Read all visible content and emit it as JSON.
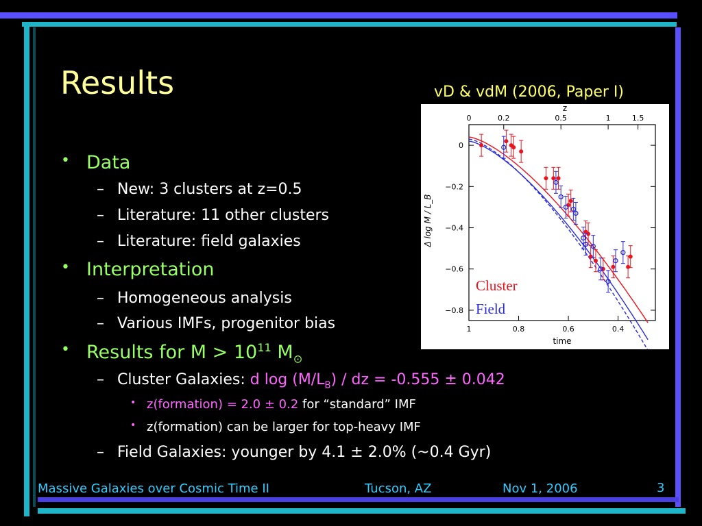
{
  "slide": {
    "title": "Results",
    "citation": "vD & vdM (2006, Paper I)",
    "page_number": "3"
  },
  "bullets": {
    "data": "Data",
    "data_items": [
      "New: 3 clusters at z=0.5",
      "Literature: 11 other clusters",
      "Literature: field galaxies"
    ],
    "interpretation": "Interpretation",
    "interp_items": [
      "Homogeneous analysis",
      "Various IMFs, progenitor bias"
    ],
    "results_prefix": "Results for M > 10",
    "results_exp": "11",
    "results_unit": " M",
    "results_sun": "⊙",
    "cluster_label": "Cluster Galaxies: ",
    "cluster_value_a": "d log (M/L",
    "cluster_value_sub": "B",
    "cluster_value_b": ") / dz = -0.555 ± 0.042",
    "zform_value": "z(formation) = 2.0 ± 0.2",
    "zform_rest": " for “standard” IMF",
    "zform_top": "z(formation) can be larger for top-heavy IMF",
    "field": "Field Galaxies: younger by 4.1 ± 2.0% (~0.4 Gyr)"
  },
  "footer": {
    "left": "Massive Galaxies over Cosmic Time II",
    "middle": "Tucson, AZ",
    "right": "Nov 1, 2006"
  },
  "figure": {
    "top_axis_label": "z",
    "top_ticks": [
      "0",
      "0.2",
      "0.5",
      "1",
      "1.5"
    ],
    "left_axis_label": "Δ log M / L_B",
    "y_ticks": [
      "0",
      "−0.2",
      "−0.4",
      "−0.6",
      "−0.8"
    ],
    "bottom_ticks": [
      "1",
      "0.8",
      "0.6",
      "0.4"
    ],
    "bottom_axis_label": "time",
    "legend_cluster": "Cluster",
    "legend_field": "Field",
    "colors": {
      "cluster": "#e8141e",
      "field": "#2a2ad8"
    }
  },
  "chart_data": {
    "type": "scatter",
    "title": "",
    "xlabel": "time",
    "ylabel": "Δ log M / L_B",
    "x_top_label": "z",
    "xlim": [
      1.0,
      0.25
    ],
    "ylim": [
      -0.85,
      0.1
    ],
    "series": [
      {
        "name": "Cluster",
        "points": [
          {
            "x": 0.95,
            "y": 0.0
          },
          {
            "x": 0.85,
            "y": 0.02
          },
          {
            "x": 0.83,
            "y": 0.0
          },
          {
            "x": 0.82,
            "y": -0.01
          },
          {
            "x": 0.79,
            "y": -0.03
          },
          {
            "x": 0.69,
            "y": -0.16
          },
          {
            "x": 0.66,
            "y": -0.16
          },
          {
            "x": 0.64,
            "y": -0.16
          },
          {
            "x": 0.6,
            "y": -0.29
          },
          {
            "x": 0.59,
            "y": -0.27
          },
          {
            "x": 0.53,
            "y": -0.42
          },
          {
            "x": 0.52,
            "y": -0.43
          },
          {
            "x": 0.51,
            "y": -0.54
          },
          {
            "x": 0.49,
            "y": -0.56
          },
          {
            "x": 0.46,
            "y": -0.6
          },
          {
            "x": 0.42,
            "y": -0.59
          },
          {
            "x": 0.36,
            "y": -0.59
          },
          {
            "x": 0.35,
            "y": -0.54
          }
        ]
      },
      {
        "name": "Field",
        "points": [
          {
            "x": 0.86,
            "y": -0.01
          },
          {
            "x": 0.65,
            "y": -0.18
          },
          {
            "x": 0.63,
            "y": -0.25
          },
          {
            "x": 0.61,
            "y": -0.3
          },
          {
            "x": 0.58,
            "y": -0.31
          },
          {
            "x": 0.57,
            "y": -0.33
          },
          {
            "x": 0.54,
            "y": -0.45
          },
          {
            "x": 0.53,
            "y": -0.48
          },
          {
            "x": 0.5,
            "y": -0.49
          },
          {
            "x": 0.47,
            "y": -0.6
          },
          {
            "x": 0.44,
            "y": -0.66
          },
          {
            "x": 0.41,
            "y": -0.56
          },
          {
            "x": 0.38,
            "y": -0.52
          }
        ]
      }
    ]
  }
}
